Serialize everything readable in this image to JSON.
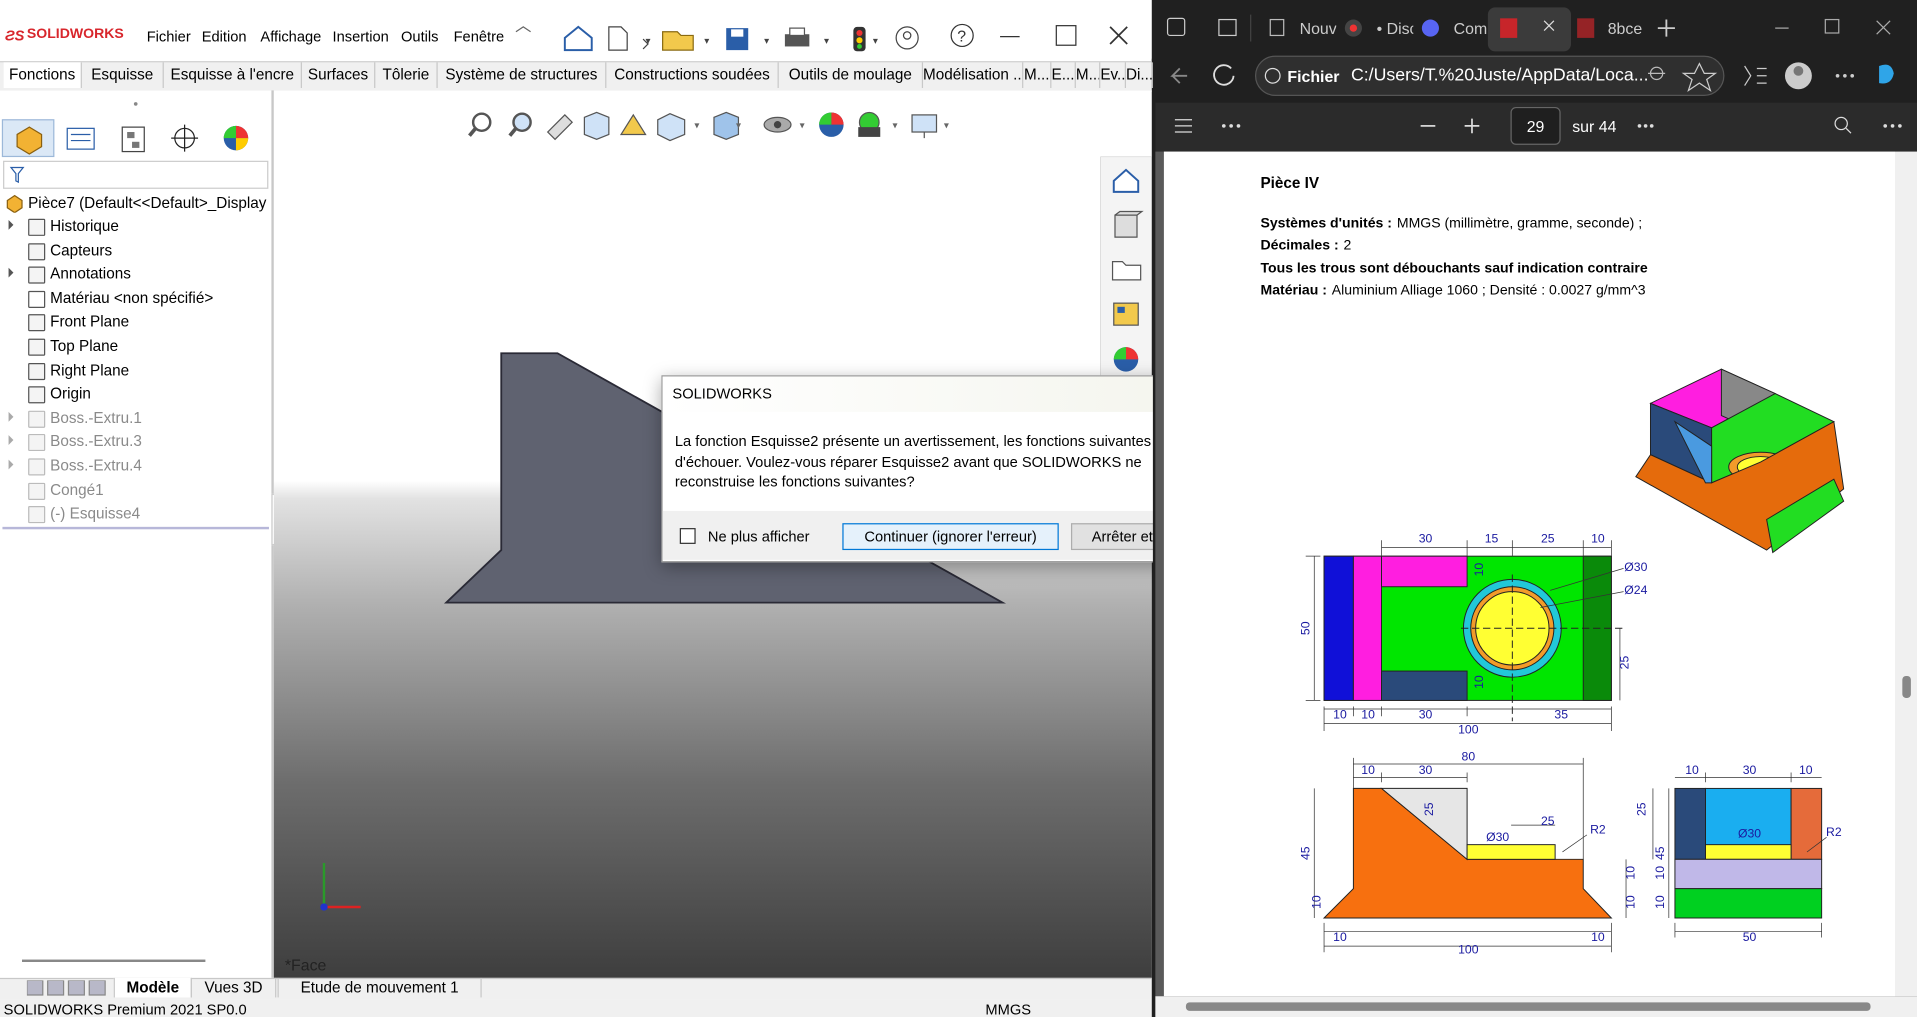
{
  "solidworks": {
    "logo": "SOLIDWORKS",
    "menu": [
      "Fichier",
      "Edition",
      "Affichage",
      "Insertion",
      "Outils",
      "Fenêtre"
    ],
    "tabs": [
      "Fonctions",
      "Esquisse",
      "Esquisse à l'encre",
      "Surfaces",
      "Tôlerie",
      "Système de structures",
      "Constructions soudées",
      "Outils de moulage",
      "Modélisation ...",
      "M...",
      "E...",
      "M...",
      "Ev...",
      "Di..."
    ],
    "tree_root": "Pièce7  (Default<<Default>_Display",
    "tree": [
      "Historique",
      "Capteurs",
      "Annotations",
      "Matériau <non spécifié>",
      "Front Plane",
      "Top Plane",
      "Right Plane",
      "Origin",
      "Boss.-Extru.1",
      "Boss.-Extru.3",
      "Boss.-Extru.4",
      "Congé1",
      "(-) Esquisse4"
    ],
    "viewport_label": "*Face",
    "bottom_tabs": [
      "Modèle",
      "Vues 3D",
      "Etude de mouvement 1"
    ],
    "status": "SOLIDWORKS Premium 2021 SP0.0",
    "units": "MMGS"
  },
  "dialog": {
    "title": "SOLIDWORKS",
    "message": "La fonction Esquisse2 présente un avertissement, les fonctions suivantes risquent d'échouer. Voulez-vous réparer Esquisse2 avant que SOLIDWORKS ne reconstruise les fonctions suivantes?",
    "checkbox": "Ne plus afficher",
    "buttons": [
      "Continuer (ignorer l'erreur)",
      "Arrêter et réparer"
    ]
  },
  "browser": {
    "tabs": [
      "Nouv",
      "• Disc",
      "Com",
      "8bce"
    ],
    "file_label": "Fichier",
    "url": "C:/Users/T.%20Juste/AppData/Loca...",
    "page": "29",
    "page_total": "sur 44"
  },
  "document": {
    "heading": "Pièce IV",
    "lines": [
      {
        "label": "Systèmes d'unités :",
        "text": "MMGS (millimètre, gramme, seconde) ;"
      },
      {
        "label": "Décimales :",
        "text": "2"
      },
      {
        "label": "Tous les trous sont débouchants sauf indication contraire"
      },
      {
        "label": "Matériau :",
        "text": "Aluminium Alliage 1060 ; Densité : 0.0027 g/mm^3"
      }
    ],
    "dims": [
      "30",
      "15",
      "25",
      "10",
      "Ø30",
      "Ø24",
      "10",
      "10",
      "50",
      "25",
      "10",
      "10",
      "30",
      "35",
      "100",
      "80",
      "10",
      "30",
      "25",
      "25",
      "Ø30",
      "R2",
      "45",
      "10",
      "10",
      "10",
      "10",
      "10",
      "100",
      "10",
      "30",
      "10",
      "25",
      "45",
      "Ø30",
      "R2",
      "10",
      "10",
      "50"
    ]
  }
}
